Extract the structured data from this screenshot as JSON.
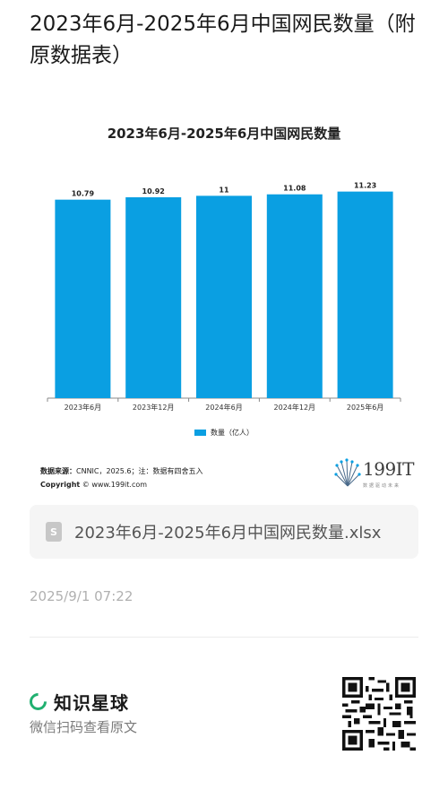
{
  "post": {
    "title": "2023年6月-2025年6月中国网民数量（附原数据表）"
  },
  "chart_data": {
    "type": "bar",
    "title": "2023年6月-2025年6月中国网民数量",
    "categories": [
      "2023年6月",
      "2023年12月",
      "2024年6月",
      "2024年12月",
      "2025年6月"
    ],
    "series": [
      {
        "name": "数量（亿人）",
        "values": [
          10.79,
          10.92,
          11,
          11.08,
          11.23
        ],
        "color": "#0a9fe2"
      }
    ],
    "data_labels": [
      "10.79",
      "10.92",
      "11",
      "11.08",
      "11.23"
    ],
    "ylim": [
      0,
      11.7
    ],
    "grid": false,
    "legend": "bottom-center"
  },
  "source": {
    "label": "数据来源：",
    "text": "CNNIC，2025.6；注：数据有四舍五入",
    "copyright_label": "Copyright",
    "copyright_text": "© www.199it.com"
  },
  "brand": {
    "name": "199IT",
    "sub": "数据驱动未来"
  },
  "file": {
    "icon_letter": "S",
    "name": "2023年6月-2025年6月中国网民数量.xlsx"
  },
  "meta": {
    "timestamp": "2025/9/1 07:22"
  },
  "footer": {
    "app_name": "知识星球",
    "hint": "微信扫码查看原文"
  },
  "colors": {
    "bar": "#0a9fe2",
    "accent_green": "#20b070"
  }
}
